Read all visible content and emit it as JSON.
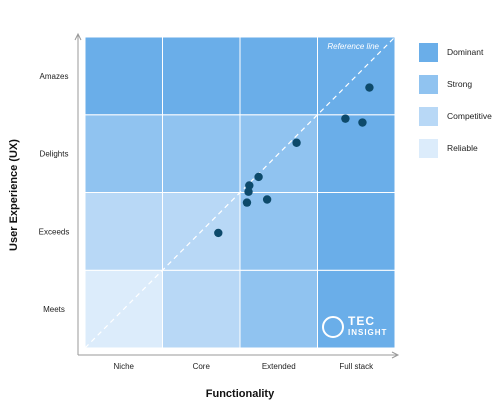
{
  "chart_data": {
    "type": "scatter",
    "xlabel": "Functionality",
    "ylabel": "User Experience (UX)",
    "x_categories": [
      "Niche",
      "Core",
      "Extended",
      "Full stack"
    ],
    "y_categories": [
      "Meets",
      "Exceeds",
      "Delights",
      "Amazes"
    ],
    "xlim": [
      0,
      4
    ],
    "ylim": [
      0,
      4
    ],
    "reference_line_label": "Reference line",
    "cell_levels": [
      [
        "Reliable",
        "Competitive",
        "Strong",
        "Dominant"
      ],
      [
        "Competitive",
        "Competitive",
        "Strong",
        "Dominant"
      ],
      [
        "Strong",
        "Strong",
        "Strong",
        "Dominant"
      ],
      [
        "Dominant",
        "Dominant",
        "Dominant",
        "Dominant"
      ]
    ],
    "points": [
      {
        "x": 3.67,
        "y": 3.35
      },
      {
        "x": 3.36,
        "y": 2.95
      },
      {
        "x": 3.58,
        "y": 2.9
      },
      {
        "x": 2.73,
        "y": 2.64
      },
      {
        "x": 2.24,
        "y": 2.2
      },
      {
        "x": 2.12,
        "y": 2.09
      },
      {
        "x": 2.11,
        "y": 2.01
      },
      {
        "x": 2.35,
        "y": 1.91
      },
      {
        "x": 2.09,
        "y": 1.87
      },
      {
        "x": 1.72,
        "y": 1.48
      }
    ],
    "legend": [
      {
        "label": "Dominant",
        "color": "#6aaee9"
      },
      {
        "label": "Strong",
        "color": "#90c3f0"
      },
      {
        "label": "Competitive",
        "color": "#b8d8f6"
      },
      {
        "label": "Reliable",
        "color": "#dcecfb"
      }
    ],
    "legend_position": "right",
    "marker_color": "#0d4a6b"
  },
  "brand": {
    "name": "TEC",
    "sub": "INSIGHT"
  }
}
